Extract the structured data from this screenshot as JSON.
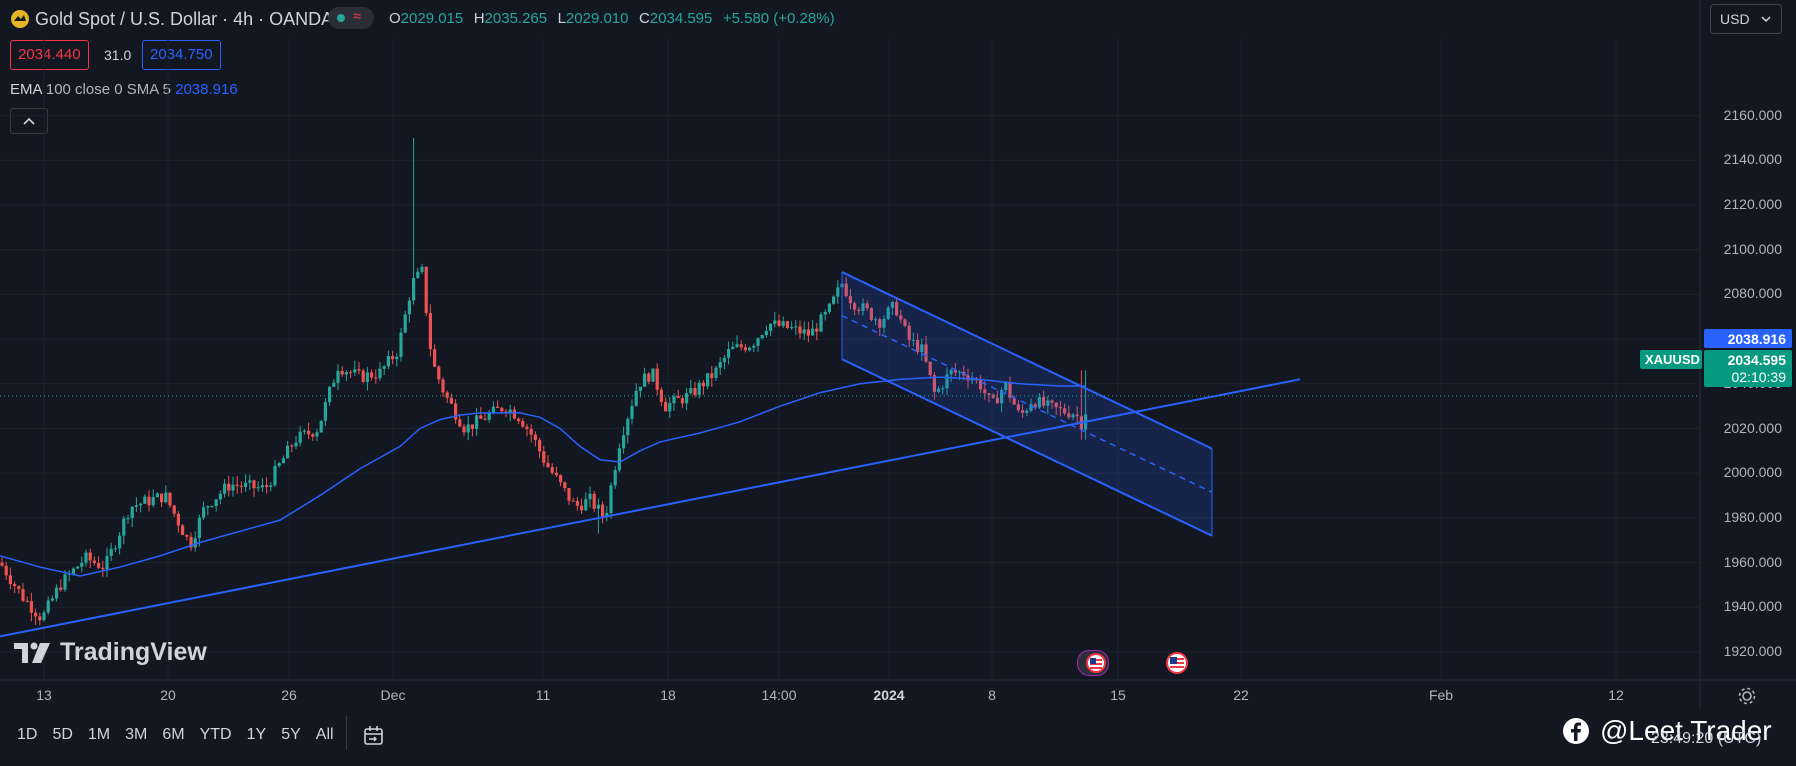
{
  "header": {
    "symbol_title": "Gold Spot / U.S. Dollar · 4h · OANDA",
    "ohlc": {
      "o_label": "O",
      "o": "2029.015",
      "h_label": "H",
      "h": "2035.265",
      "l_label": "L",
      "l": "2029.010",
      "c_label": "C",
      "c": "2034.595",
      "change": "+5.580 (+0.28%)"
    },
    "bid": "2034.440",
    "spread": "31.0",
    "ask": "2034.750",
    "currency": "USD",
    "indicator_name": "EMA",
    "indicator_params": "100 close 0 SMA 5",
    "indicator_value": "2038.916"
  },
  "price_axis": {
    "labels": [
      "2160.000",
      "2140.000",
      "2120.000",
      "2100.000",
      "2080.000",
      "2060.000",
      "2040.000",
      "2020.000",
      "2000.000",
      "1980.000",
      "1960.000",
      "1940.000",
      "1920.000"
    ],
    "ema_label": "2038.916",
    "symbol_label": "XAUUSD",
    "last_price": "2034.595",
    "countdown": "02:10:39"
  },
  "time_axis": {
    "labels": [
      "13",
      "20",
      "26",
      "Dec",
      "11",
      "18",
      "14:00",
      "2024",
      "8",
      "15",
      "22",
      "Feb",
      "12"
    ]
  },
  "ranges": [
    "1D",
    "5D",
    "1M",
    "3M",
    "6M",
    "YTD",
    "1Y",
    "5Y",
    "All"
  ],
  "footer": {
    "clock": "23:49:20 (UTC)",
    "watermark": "@Leet Trader",
    "logo_text": "TradingView"
  },
  "colors": {
    "background": "#131722",
    "up": "#26a69a",
    "down": "#ef5350",
    "ema": "#2962ff",
    "trendline": "#2962ff"
  },
  "icons": {
    "symbol": "gold-coin-icon",
    "settings": "gear-icon",
    "collapse": "chevron-up-icon",
    "calendar": "calendar-range-icon",
    "facebook": "facebook-icon",
    "events": "us-flag-event-icon"
  },
  "chart_data": {
    "type": "candlestick",
    "symbol": "XAUUSD",
    "timeframe": "4h",
    "ylim": [
      1910,
      2170
    ],
    "ema_100": 2038.916,
    "last_close": 2034.595
  }
}
